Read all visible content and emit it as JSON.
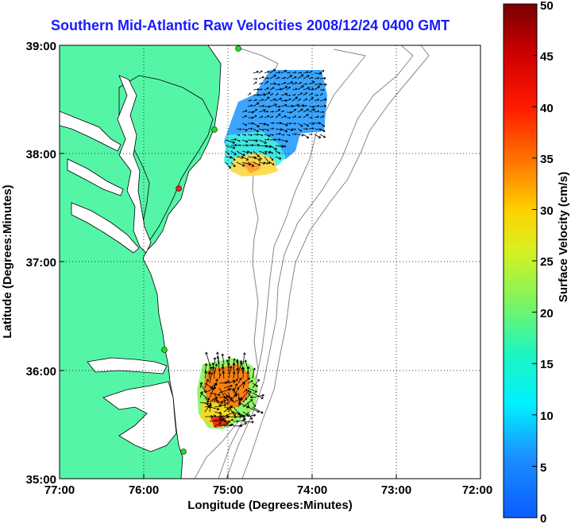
{
  "title": "Southern Mid-Atlantic Raw Velocities 2008/12/24 0400 GMT",
  "xlabel": "Longitude (Degrees:Minutes)",
  "ylabel": "Latitude (Degrees:Minutes)",
  "x_ticks": [
    "77:00",
    "76:00",
    "75:00",
    "74:00",
    "73:00",
    "72:00"
  ],
  "y_ticks": [
    "39:00",
    "38:00",
    "37:00",
    "36:00",
    "35:00"
  ],
  "colorbar": {
    "label": "Surface Velocity (cm/s)",
    "ticks": [
      "0",
      "5",
      "10",
      "15",
      "20",
      "25",
      "30",
      "35",
      "40",
      "45",
      "50"
    ]
  },
  "colors": {
    "land": "#55f5a8",
    "title": "#1a1aff",
    "station_green": "#22dd22",
    "station_red": "#ee2222"
  }
}
